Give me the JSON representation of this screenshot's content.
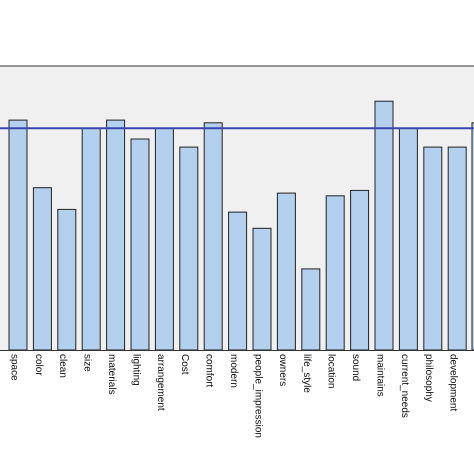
{
  "chart_data": {
    "type": "bar",
    "title": "",
    "xlabel": "",
    "ylabel": "",
    "categories": [
      "space",
      "color",
      "clean",
      "size",
      "materials",
      "lighting",
      "arrangement",
      "Cost",
      "comfort",
      "modern",
      "people_impression",
      "owners",
      "life_style",
      "location",
      "sound",
      "maintains",
      "current_needs",
      "philosophy",
      "development"
    ],
    "values": [
      0.85,
      0.6,
      0.52,
      0.82,
      0.85,
      0.78,
      0.82,
      0.75,
      0.84,
      0.51,
      0.45,
      0.58,
      0.3,
      0.57,
      0.59,
      0.92,
      0.82,
      0.75,
      0.75
    ],
    "reference_line": 0.82,
    "ylim": [
      0,
      1.05
    ],
    "grid": false,
    "legend": "none",
    "colors": {
      "bar_fill": "#b3d0ee",
      "bar_stroke": "#222222",
      "reference_line": "#3a46b0",
      "plot_background": "#f0f0f0"
    }
  }
}
